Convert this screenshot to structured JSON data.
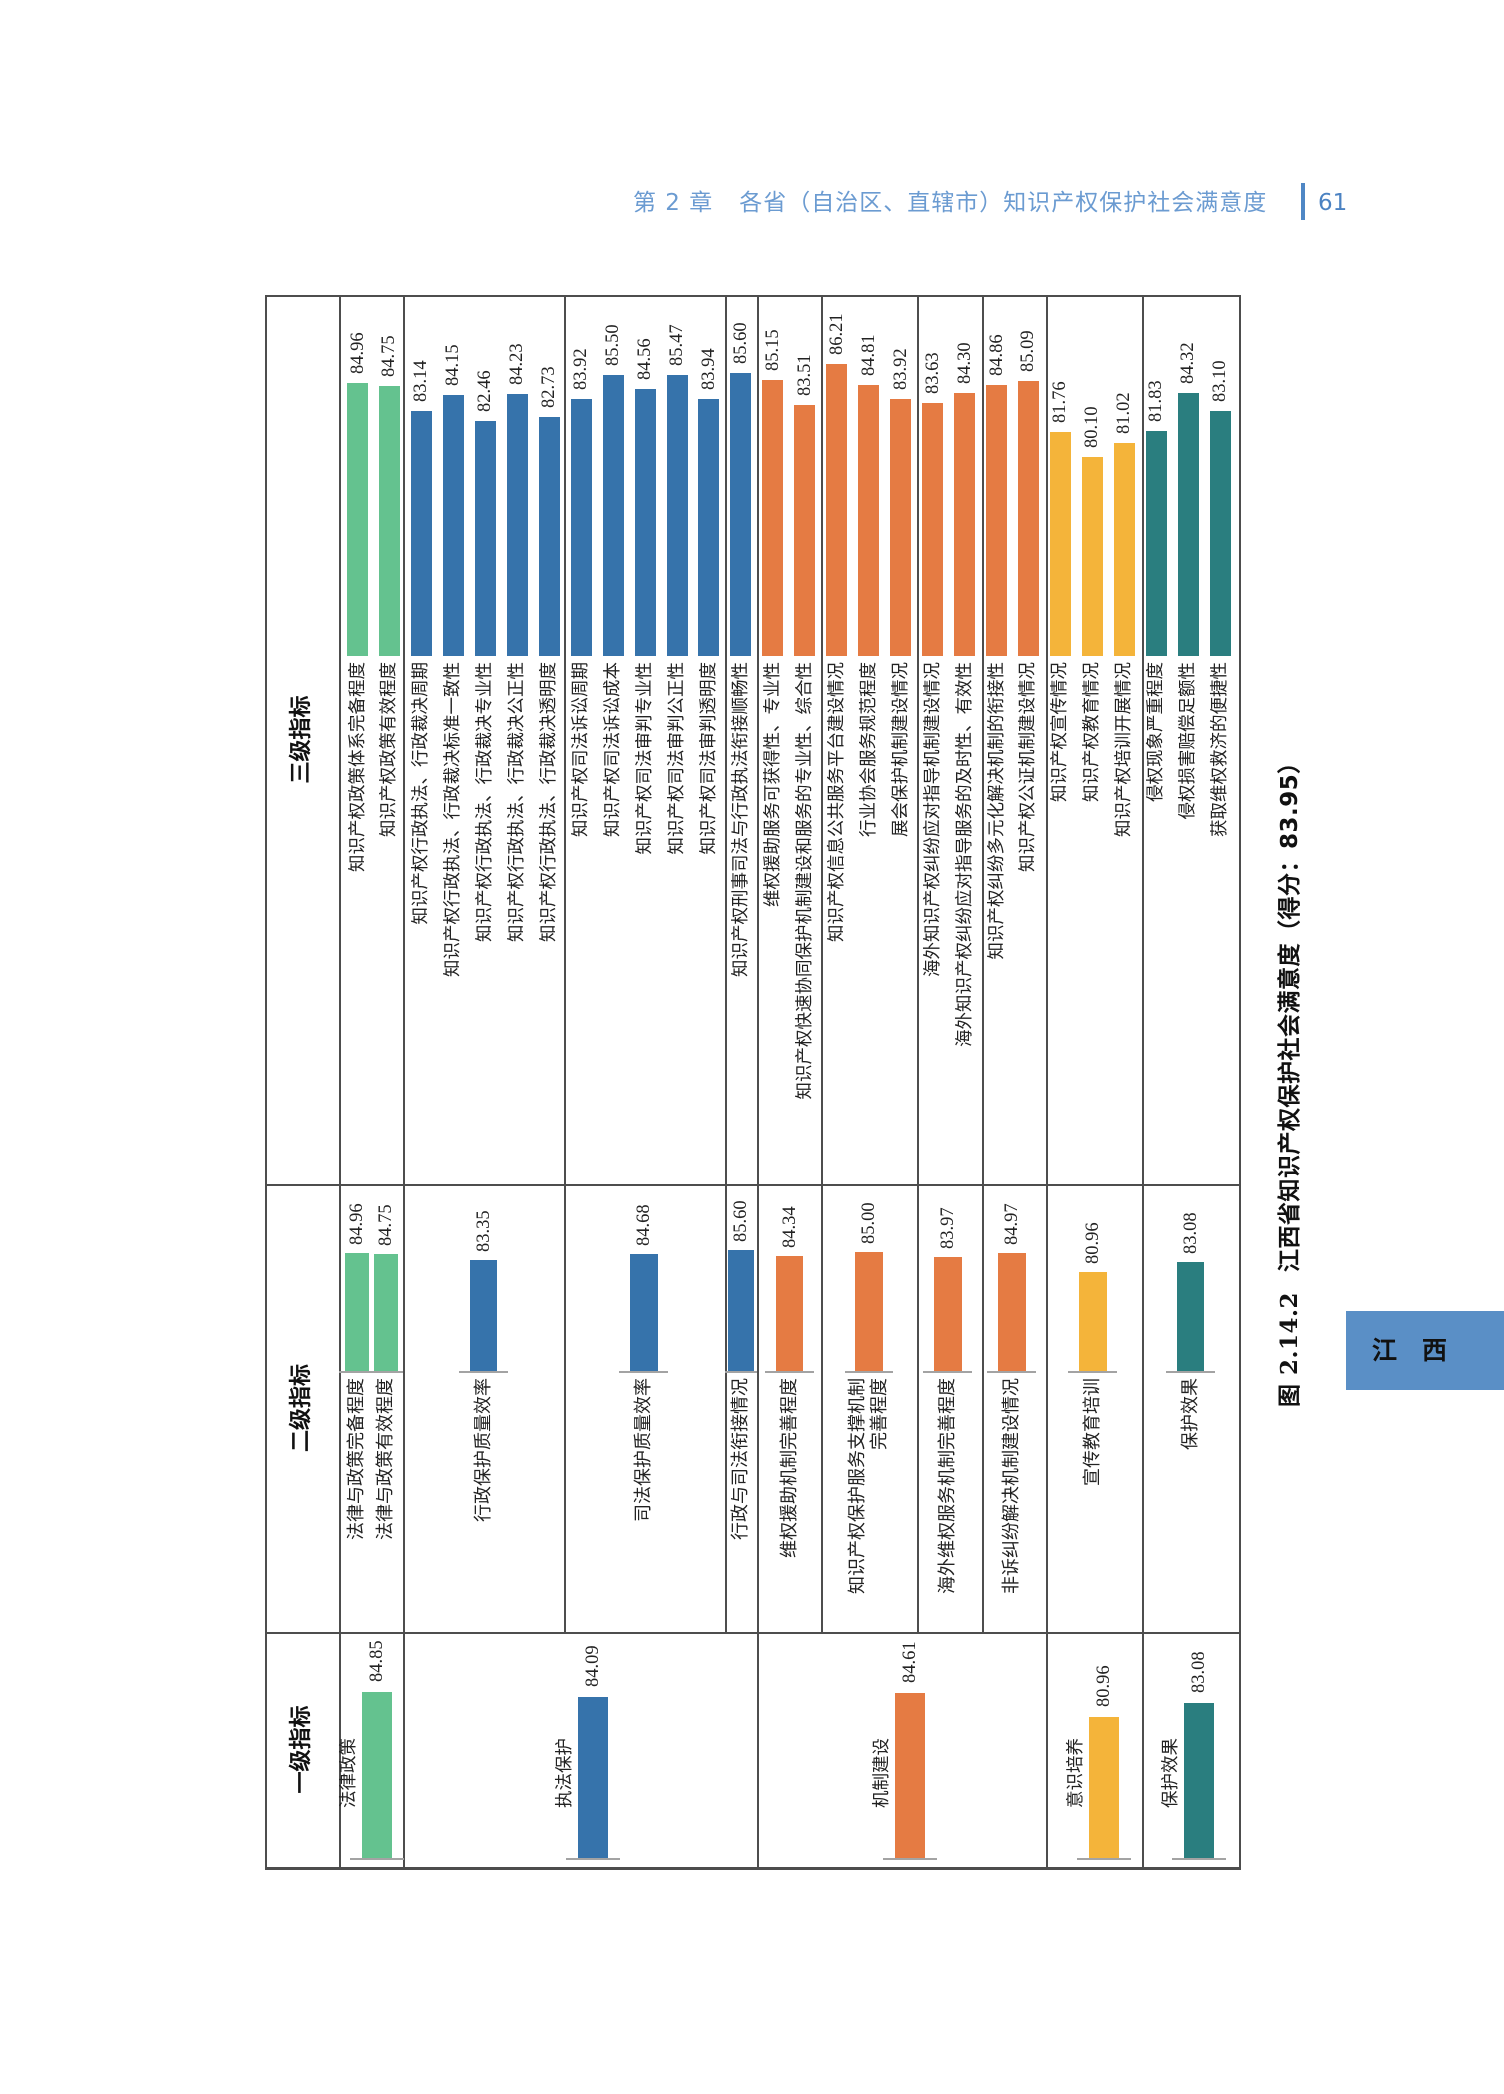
{
  "header": {
    "chapter": "第 2 章",
    "title": "各省（自治区、直辖市）知识产权保护社会满意度",
    "page_number": "61"
  },
  "table": {
    "row_headers": [
      "三级指标",
      "二级指标",
      "一级指标"
    ]
  },
  "figure": {
    "number": "图 2.14.2",
    "title": "江西省知识产权保护社会满意度（得分：83.95）"
  },
  "side_tab": {
    "label": "江　西"
  },
  "theme": {
    "header_text": "#6b9bd1",
    "page_number": "#4b82c2",
    "header_rule": "#4f87c5",
    "tab_background": "#5a8fc6",
    "grid_line": "#4d4d4d",
    "axis_line": "#a3a3a3"
  },
  "group_colors": {
    "法律政策": "#64c28f",
    "执法保护": "#3673ab",
    "机制建设": "#e57b43",
    "意识培养": "#f4b43a",
    "保护效果": "#2a7e7f"
  },
  "chart_data": [
    {
      "type": "bar",
      "title": "三级指标",
      "xlabel": "",
      "ylabel": "",
      "grid": false,
      "legend": "none",
      "ylim": [
        67,
        87
      ],
      "categories": [
        "知识产权政策体系完备程度",
        "知识产权政策有效程度",
        "知识产权行政执法、行政裁决周期",
        "知识产权行政执法、行政裁决标准一致性",
        "知识产权行政执法、行政裁决专业性",
        "知识产权行政执法、行政裁决公正性",
        "知识产权行政执法、行政裁决透明度",
        "知识产权司法诉讼周期",
        "知识产权司法诉讼成本",
        "知识产权司法审判专业性",
        "知识产权司法审判公正性",
        "知识产权司法审判透明度",
        "知识产权刑事司法与行政执法衔接顺畅性",
        "维权援助服务可获得性、专业性",
        "知识产权快速协同保护机制建设和服务的专业性、综合性",
        "知识产权信息公共服务平台建设情况",
        "行业协会服务规范程度",
        "展会保护机制建设情况",
        "海外知识产权纠纷应对指导机制建设情况",
        "海外知识产权纠纷应对指导服务的及时性、有效性",
        "知识产权纠纷多元化解决机制的衔接性",
        "知识产权公证机制建设情况",
        "知识产权宣传情况",
        "知识产权教育情况",
        "知识产权培训开展情况",
        "侵权现象严重程度",
        "侵权损害赔偿足额性",
        "获取维权救济的便捷性"
      ],
      "values": [
        84.96,
        84.75,
        83.14,
        84.15,
        82.46,
        84.23,
        82.73,
        83.92,
        85.5,
        84.56,
        85.47,
        83.94,
        85.6,
        85.15,
        83.51,
        86.21,
        84.81,
        83.92,
        83.63,
        84.3,
        84.86,
        85.09,
        81.76,
        80.1,
        81.02,
        81.83,
        84.32,
        83.1
      ],
      "value_labels": [
        "84.96",
        "84.75",
        "83.14",
        "84.15",
        "82.46",
        "84.23",
        "82.73",
        "83.92",
        "85.50",
        "84.56",
        "85.47",
        "83.94",
        "85.60",
        "85.15",
        "83.51",
        "86.21",
        "84.81",
        "83.92",
        "83.63",
        "84.30",
        "84.86",
        "85.09",
        "81.76",
        "80.10",
        "81.02",
        "81.83",
        "84.32",
        "83.10"
      ],
      "groups": [
        "法律政策",
        "法律政策",
        "执法保护",
        "执法保护",
        "执法保护",
        "执法保护",
        "执法保护",
        "执法保护",
        "执法保护",
        "执法保护",
        "执法保护",
        "执法保护",
        "执法保护",
        "机制建设",
        "机制建设",
        "机制建设",
        "机制建设",
        "机制建设",
        "机制建设",
        "机制建设",
        "机制建设",
        "机制建设",
        "意识培养",
        "意识培养",
        "意识培养",
        "保护效果",
        "保护效果",
        "保护效果"
      ]
    },
    {
      "type": "bar",
      "title": "二级指标",
      "xlabel": "",
      "ylabel": "",
      "grid": false,
      "legend": "none",
      "ylim": [
        60,
        87
      ],
      "categories": [
        "法律与政策完备程度",
        "法律与政策有效程度",
        "行政保护质量效率",
        "司法保护质量效率",
        "行政与司法衔接情况",
        "维权援助机制完善程度",
        "知识产权保护服务支撑机制完善程度",
        "海外维权服务机制完善程度",
        "非诉纠纷解决机制建设情况",
        "宣传教育培训",
        "保护效果"
      ],
      "values": [
        84.96,
        84.75,
        83.35,
        84.68,
        85.6,
        84.34,
        85.0,
        83.97,
        84.97,
        80.96,
        83.08
      ],
      "value_labels": [
        "84.96",
        "84.75",
        "83.35",
        "84.68",
        "85.60",
        "84.34",
        "85.00",
        "83.97",
        "84.97",
        "80.96",
        "83.08"
      ],
      "groups": [
        "法律政策",
        "法律政策",
        "执法保护",
        "执法保护",
        "执法保护",
        "机制建设",
        "机制建设",
        "机制建设",
        "机制建设",
        "意识培养",
        "保护效果"
      ]
    },
    {
      "type": "bar",
      "title": "一级指标",
      "xlabel": "",
      "ylabel": "",
      "grid": false,
      "legend": "none",
      "ylim": [
        59,
        87
      ],
      "categories": [
        "法律政策",
        "执法保护",
        "机制建设",
        "意识培养",
        "保护效果"
      ],
      "values": [
        84.85,
        84.09,
        84.61,
        80.96,
        83.08
      ],
      "value_labels": [
        "84.85",
        "84.09",
        "84.61",
        "80.96",
        "83.08"
      ],
      "groups": [
        "法律政策",
        "执法保护",
        "机制建设",
        "意识培养",
        "保护效果"
      ]
    }
  ]
}
